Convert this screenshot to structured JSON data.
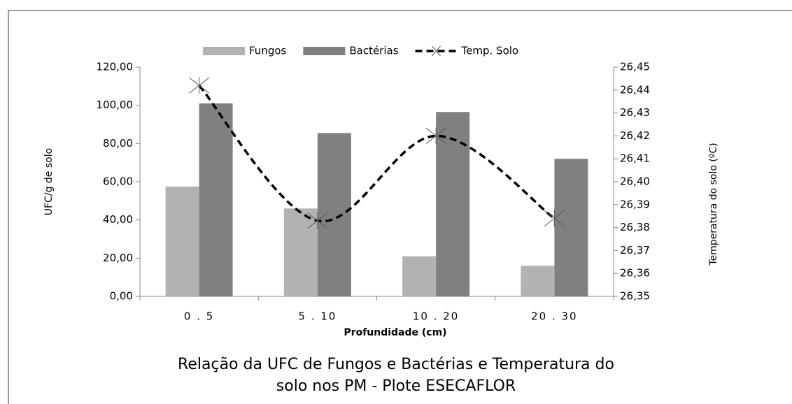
{
  "chart_data": {
    "type": "bar_line",
    "title": [
      "Relação da UFC de Fungos e Bactérias e Temperatura do",
      "solo nos PM - Plote ESECAFLOR"
    ],
    "x_label": "Profundidade (cm)",
    "y_label": "UFC/g de solo",
    "y2_label": "Temperatura do solo (ºC)",
    "categories": [
      "0 . 5",
      "5 . 10",
      "10 . 20",
      "20 . 30"
    ],
    "series": [
      {
        "name": "Fungos",
        "type": "bar",
        "color": "#b2b2b2",
        "values": [
          57.5,
          46,
          21,
          16
        ]
      },
      {
        "name": "Bactérias",
        "type": "bar",
        "color": "#808080",
        "values": [
          101,
          85.5,
          96.5,
          72
        ]
      },
      {
        "name": "Temp. Solo",
        "type": "line",
        "axis": "y2",
        "color": "#000000",
        "values": [
          26.442,
          26.383,
          26.42,
          26.384
        ]
      }
    ],
    "ylim": [
      0,
      120
    ],
    "yticks": [
      {
        "value": 0,
        "label": "0,00"
      },
      {
        "value": 20,
        "label": "20,00"
      },
      {
        "value": 40,
        "label": "40,00"
      },
      {
        "value": 60,
        "label": "60,00"
      },
      {
        "value": 80,
        "label": "80,00"
      },
      {
        "value": 100,
        "label": "100,00"
      },
      {
        "value": 120,
        "label": "120,00"
      }
    ],
    "y2lim": [
      26.35,
      26.45
    ],
    "y2ticks": [
      {
        "value": 26.35,
        "label": "26,35"
      },
      {
        "value": 26.36,
        "label": "26,36"
      },
      {
        "value": 26.37,
        "label": "26,37"
      },
      {
        "value": 26.38,
        "label": "26,38"
      },
      {
        "value": 26.39,
        "label": "26,39"
      },
      {
        "value": 26.4,
        "label": "26,40"
      },
      {
        "value": 26.41,
        "label": "26,41"
      },
      {
        "value": 26.42,
        "label": "26,42"
      },
      {
        "value": 26.43,
        "label": "26,43"
      },
      {
        "value": 26.44,
        "label": "26,44"
      },
      {
        "value": 26.45,
        "label": "26,45"
      }
    ],
    "legend": "top"
  }
}
